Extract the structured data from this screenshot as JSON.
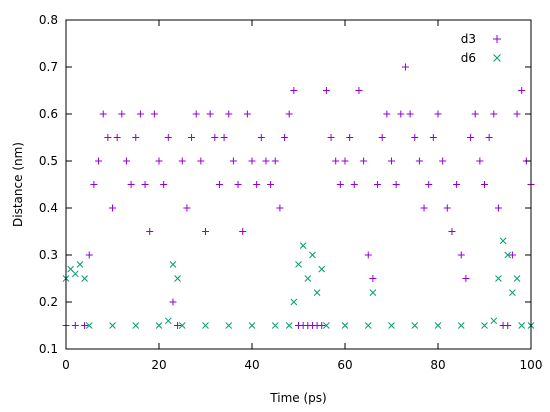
{
  "chart_data": {
    "type": "scatter",
    "title": "",
    "xlabel": "Time (ps)",
    "ylabel": "Distance (nm)",
    "xlim": [
      0,
      100
    ],
    "ylim": [
      0.1,
      0.8
    ],
    "xticks": [
      "0",
      "20",
      "40",
      "60",
      "80",
      "100"
    ],
    "yticks": [
      "0.1",
      "0.2",
      "0.3",
      "0.4",
      "0.5",
      "0.6",
      "0.7",
      "0.8"
    ],
    "grid": false,
    "legend_position": "top-right",
    "series": [
      {
        "name": "d3",
        "marker": "+",
        "color": "#9400d3",
        "x": [
          0,
          2,
          4,
          5,
          6,
          7,
          8,
          9,
          10,
          11,
          12,
          13,
          14,
          15,
          16,
          17,
          18,
          19,
          20,
          21,
          22,
          23,
          24,
          25,
          26,
          27,
          28,
          29,
          30,
          31,
          32,
          33,
          34,
          35,
          36,
          37,
          38,
          39,
          40,
          41,
          42,
          43,
          44,
          45,
          46,
          47,
          48,
          49,
          50,
          51,
          52,
          53,
          54,
          55,
          56,
          57,
          58,
          59,
          60,
          61,
          62,
          63,
          64,
          65,
          66,
          67,
          68,
          69,
          70,
          71,
          72,
          73,
          74,
          75,
          76,
          77,
          78,
          79,
          80,
          81,
          82,
          83,
          84,
          85,
          86,
          87,
          88,
          89,
          90,
          91,
          92,
          93,
          94,
          95,
          96,
          97,
          98,
          99,
          100
        ],
        "y": [
          0.15,
          0.15,
          0.15,
          0.3,
          0.45,
          0.5,
          0.6,
          0.55,
          0.4,
          0.55,
          0.6,
          0.5,
          0.45,
          0.55,
          0.6,
          0.45,
          0.35,
          0.6,
          0.5,
          0.45,
          0.55,
          0.2,
          0.15,
          0.5,
          0.4,
          0.55,
          0.6,
          0.5,
          0.35,
          0.6,
          0.55,
          0.45,
          0.55,
          0.6,
          0.5,
          0.45,
          0.35,
          0.6,
          0.5,
          0.45,
          0.55,
          0.5,
          0.45,
          0.5,
          0.4,
          0.55,
          0.6,
          0.65,
          0.15,
          0.15,
          0.15,
          0.15,
          0.15,
          0.15,
          0.65,
          0.55,
          0.5,
          0.45,
          0.5,
          0.55,
          0.45,
          0.65,
          0.5,
          0.3,
          0.25,
          0.45,
          0.55,
          0.6,
          0.5,
          0.45,
          0.6,
          0.7,
          0.6,
          0.55,
          0.5,
          0.4,
          0.45,
          0.55,
          0.6,
          0.5,
          0.4,
          0.35,
          0.45,
          0.3,
          0.25,
          0.55,
          0.6,
          0.5,
          0.45,
          0.55,
          0.6,
          0.4,
          0.15,
          0.15,
          0.3,
          0.6,
          0.65,
          0.5,
          0.45
        ]
      },
      {
        "name": "d6",
        "marker": "x",
        "color": "#009e73",
        "x": [
          0,
          1,
          2,
          3,
          4,
          5,
          10,
          15,
          20,
          22,
          23,
          24,
          25,
          30,
          35,
          40,
          45,
          48,
          49,
          50,
          51,
          52,
          53,
          54,
          55,
          56,
          60,
          65,
          66,
          70,
          75,
          80,
          85,
          90,
          92,
          93,
          94,
          95,
          96,
          97,
          98,
          100
        ],
        "y": [
          0.25,
          0.27,
          0.26,
          0.28,
          0.25,
          0.15,
          0.15,
          0.15,
          0.15,
          0.16,
          0.28,
          0.25,
          0.15,
          0.15,
          0.15,
          0.15,
          0.15,
          0.15,
          0.2,
          0.28,
          0.32,
          0.25,
          0.3,
          0.22,
          0.27,
          0.15,
          0.15,
          0.15,
          0.22,
          0.15,
          0.15,
          0.15,
          0.15,
          0.15,
          0.16,
          0.25,
          0.33,
          0.3,
          0.22,
          0.25,
          0.15,
          0.15
        ]
      }
    ]
  }
}
